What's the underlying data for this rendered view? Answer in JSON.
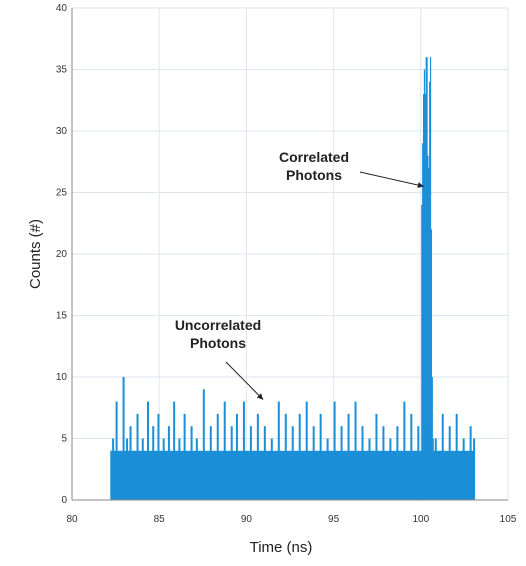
{
  "chart_data": {
    "type": "bar",
    "title": "",
    "xlabel": "Time (ns)",
    "ylabel": "Counts (#)",
    "xlim": [
      80,
      105
    ],
    "ylim": [
      0,
      40
    ],
    "xticks": [
      "80",
      "85",
      "90",
      "95",
      "100",
      "105"
    ],
    "yticks": [
      "0",
      "5",
      "10",
      "15",
      "20",
      "25",
      "30",
      "35",
      "40"
    ],
    "grid": true,
    "bar_color": "#1a8fd8",
    "bin_width_ns": 0.05,
    "series": [
      {
        "values_description_range": [
          82.2,
          103.1
        ],
        "baseline_bins": [
          {
            "x": 82.2,
            "y": 4
          },
          {
            "x": 82.3,
            "y": 5
          },
          {
            "x": 82.5,
            "y": 8
          },
          {
            "x": 82.7,
            "y": 4
          },
          {
            "x": 82.9,
            "y": 10
          },
          {
            "x": 83.1,
            "y": 5
          },
          {
            "x": 83.3,
            "y": 6
          },
          {
            "x": 83.5,
            "y": 4
          },
          {
            "x": 83.7,
            "y": 7
          },
          {
            "x": 84.0,
            "y": 5
          },
          {
            "x": 84.3,
            "y": 8
          },
          {
            "x": 84.6,
            "y": 6
          },
          {
            "x": 84.9,
            "y": 7
          },
          {
            "x": 85.2,
            "y": 5
          },
          {
            "x": 85.5,
            "y": 6
          },
          {
            "x": 85.8,
            "y": 8
          },
          {
            "x": 86.1,
            "y": 5
          },
          {
            "x": 86.4,
            "y": 7
          },
          {
            "x": 86.8,
            "y": 6
          },
          {
            "x": 87.1,
            "y": 5
          },
          {
            "x": 87.5,
            "y": 9
          },
          {
            "x": 87.9,
            "y": 6
          },
          {
            "x": 88.3,
            "y": 7
          },
          {
            "x": 88.7,
            "y": 8
          },
          {
            "x": 89.1,
            "y": 6
          },
          {
            "x": 89.4,
            "y": 7
          },
          {
            "x": 89.8,
            "y": 8
          },
          {
            "x": 90.2,
            "y": 6
          },
          {
            "x": 90.6,
            "y": 7
          },
          {
            "x": 91.0,
            "y": 6
          },
          {
            "x": 91.4,
            "y": 5
          },
          {
            "x": 91.8,
            "y": 8
          },
          {
            "x": 92.2,
            "y": 7
          },
          {
            "x": 92.6,
            "y": 6
          },
          {
            "x": 93.0,
            "y": 7
          },
          {
            "x": 93.4,
            "y": 8
          },
          {
            "x": 93.8,
            "y": 6
          },
          {
            "x": 94.2,
            "y": 7
          },
          {
            "x": 94.6,
            "y": 5
          },
          {
            "x": 95.0,
            "y": 8
          },
          {
            "x": 95.4,
            "y": 6
          },
          {
            "x": 95.8,
            "y": 7
          },
          {
            "x": 96.2,
            "y": 8
          },
          {
            "x": 96.6,
            "y": 6
          },
          {
            "x": 97.0,
            "y": 5
          },
          {
            "x": 97.4,
            "y": 7
          },
          {
            "x": 97.8,
            "y": 6
          },
          {
            "x": 98.2,
            "y": 5
          },
          {
            "x": 98.6,
            "y": 6
          },
          {
            "x": 99.0,
            "y": 8
          },
          {
            "x": 99.4,
            "y": 7
          },
          {
            "x": 99.8,
            "y": 6
          },
          {
            "x": 100.2,
            "y": 6
          },
          {
            "x": 100.8,
            "y": 5
          },
          {
            "x": 101.2,
            "y": 7
          },
          {
            "x": 101.6,
            "y": 6
          },
          {
            "x": 102.0,
            "y": 7
          },
          {
            "x": 102.4,
            "y": 5
          },
          {
            "x": 102.8,
            "y": 6
          },
          {
            "x": 103.0,
            "y": 5
          }
        ],
        "peak_bins": [
          {
            "x": 100.05,
            "y": 24
          },
          {
            "x": 100.1,
            "y": 29
          },
          {
            "x": 100.15,
            "y": 33
          },
          {
            "x": 100.2,
            "y": 35
          },
          {
            "x": 100.25,
            "y": 33
          },
          {
            "x": 100.3,
            "y": 36
          },
          {
            "x": 100.35,
            "y": 36
          },
          {
            "x": 100.4,
            "y": 28
          },
          {
            "x": 100.45,
            "y": 27
          },
          {
            "x": 100.5,
            "y": 34
          },
          {
            "x": 100.55,
            "y": 36
          },
          {
            "x": 100.6,
            "y": 22
          },
          {
            "x": 100.65,
            "y": 10
          },
          {
            "x": 100.7,
            "y": 5
          }
        ]
      }
    ],
    "annotations": [
      {
        "text": [
          "Correlated",
          "Photons"
        ],
        "x": 100.4,
        "y": 25.5
      },
      {
        "text": [
          "Uncorrelated",
          "Photons"
        ],
        "x": 90.5,
        "y": 8
      }
    ]
  }
}
